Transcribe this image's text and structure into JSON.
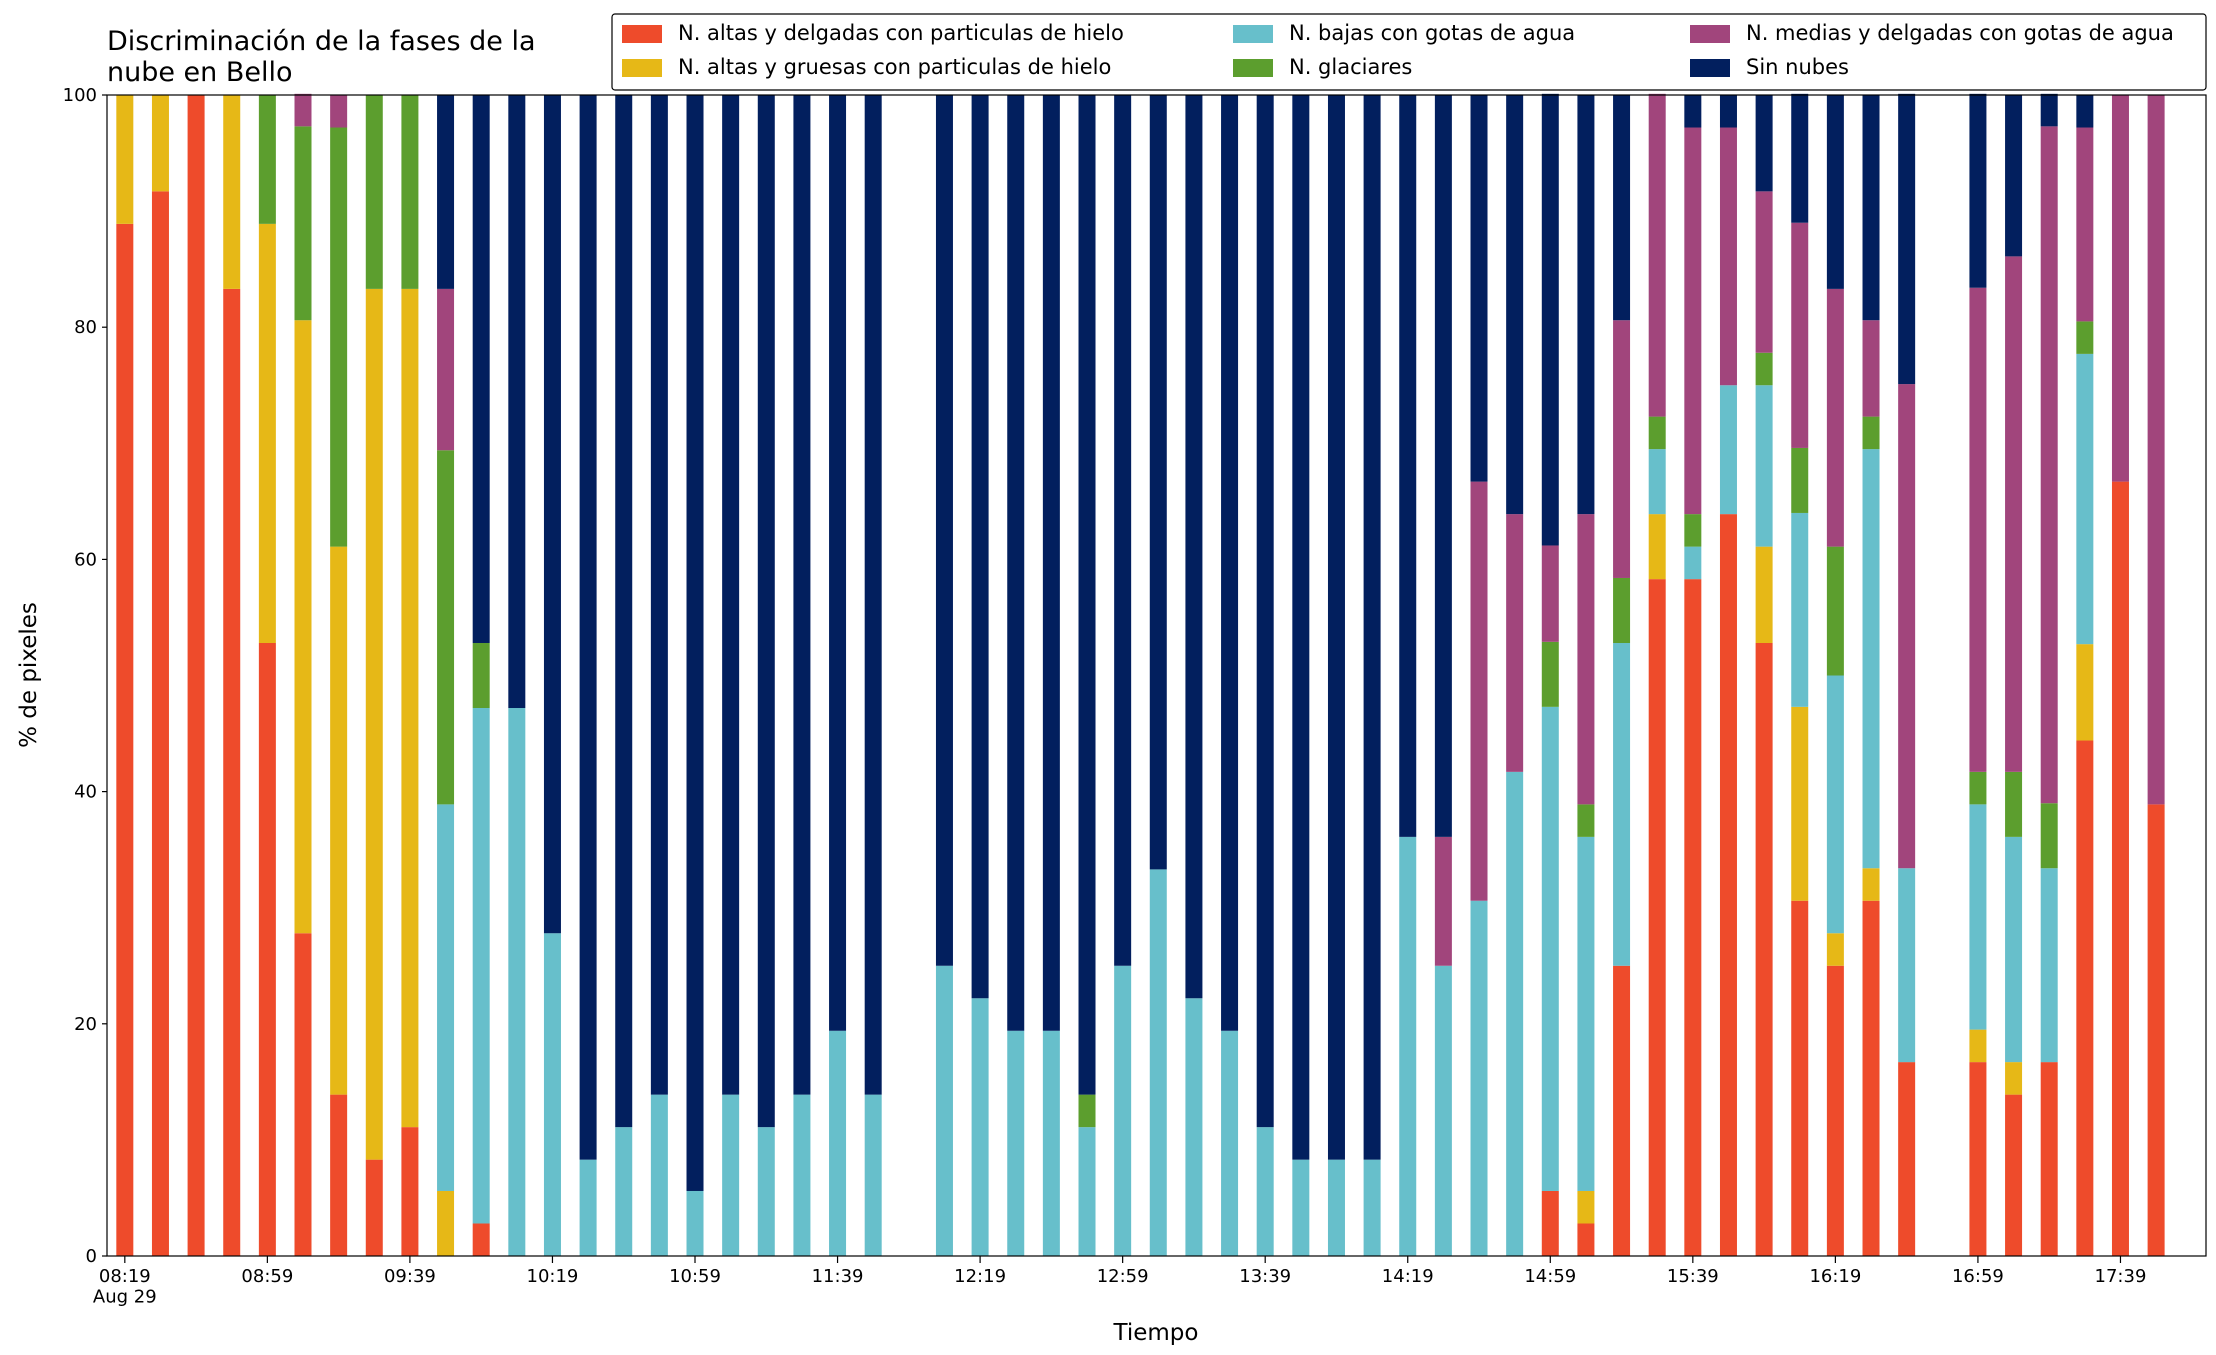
{
  "chart_data": {
    "type": "stacked_bar",
    "title": "Discriminación de la fases de la\nnube en Bello",
    "xlabel": "Tiempo",
    "ylabel": "% de pixeles",
    "x": [
      "08:19",
      "08:29",
      "08:39",
      "08:49",
      "08:59",
      "09:09",
      "09:19",
      "09:29",
      "09:39",
      "09:49",
      "09:59",
      "10:09",
      "10:19",
      "10:29",
      "10:39",
      "10:49",
      "10:59",
      "11:09",
      "11:19",
      "11:29",
      "11:39",
      "11:49",
      "12:09",
      "12:19",
      "12:29",
      "12:39",
      "12:49",
      "12:59",
      "13:09",
      "13:19",
      "13:29",
      "13:39",
      "13:49",
      "13:59",
      "14:09",
      "14:19",
      "14:29",
      "14:39",
      "14:49",
      "14:59",
      "15:09",
      "15:19",
      "15:29",
      "15:39",
      "15:49",
      "15:59",
      "16:09",
      "16:19",
      "16:29",
      "16:39",
      "16:59",
      "17:09",
      "17:19",
      "17:29",
      "17:39",
      "17:49"
    ],
    "xlim": [
      "08:14",
      "18:03"
    ],
    "xticks": [
      {
        "value": "08:19",
        "label": "08:19\nAug 29"
      },
      "08:59",
      "09:39",
      "10:19",
      "10:59",
      "11:39",
      "12:19",
      "12:59",
      "13:39",
      "14:19",
      "14:59",
      "15:39",
      "16:19",
      "16:59",
      "17:39"
    ],
    "ylim": [
      0,
      100
    ],
    "yticks": [
      0,
      20,
      40,
      60,
      80,
      100
    ],
    "legend_position": "upper right",
    "series": [
      {
        "name": "N. altas y delgadas con particulas de hielo",
        "color": "#ee4b2b",
        "values": [
          88.9,
          91.7,
          100,
          83.3,
          52.8,
          27.8,
          13.9,
          8.3,
          11.1,
          0,
          2.8,
          0,
          0,
          0,
          0,
          0,
          0,
          0,
          0,
          0,
          0,
          0,
          0,
          0,
          0,
          0,
          0,
          0,
          0,
          0,
          0,
          0,
          0,
          0,
          0,
          0,
          0,
          0,
          0,
          5.6,
          2.8,
          25.0,
          58.3,
          58.3,
          63.9,
          52.8,
          30.6,
          25.0,
          30.6,
          16.7,
          16.7,
          13.9,
          16.7,
          44.4,
          66.7,
          38.9
        ]
      },
      {
        "name": "N. altas y gruesas con particulas de hielo",
        "color": "#e6b817",
        "values": [
          11.1,
          8.3,
          0,
          16.7,
          36.1,
          52.8,
          47.2,
          75.0,
          72.2,
          5.6,
          0,
          0,
          0,
          0,
          0,
          0,
          0,
          0,
          0,
          0,
          0,
          0,
          0,
          0,
          0,
          0,
          0,
          0,
          0,
          0,
          0,
          0,
          0,
          0,
          0,
          0,
          0,
          0,
          0,
          0,
          2.8,
          0,
          5.6,
          0,
          0,
          8.3,
          16.7,
          2.8,
          2.8,
          0,
          2.8,
          2.8,
          0,
          8.3,
          0,
          0
        ]
      },
      {
        "name": "N. bajas con gotas de agua",
        "color": "#67bfcb",
        "values": [
          0,
          0,
          0,
          0,
          0,
          0,
          0,
          0,
          0,
          33.3,
          44.4,
          47.2,
          27.8,
          8.3,
          11.1,
          13.9,
          5.6,
          13.9,
          11.1,
          13.9,
          19.4,
          13.9,
          25.0,
          22.2,
          19.4,
          19.4,
          11.1,
          25.0,
          33.3,
          22.2,
          19.4,
          11.1,
          8.3,
          8.3,
          8.3,
          36.1,
          25.0,
          30.6,
          41.7,
          41.7,
          30.5,
          27.8,
          5.6,
          2.8,
          11.1,
          13.9,
          16.7,
          22.2,
          36.1,
          16.7,
          19.4,
          19.4,
          16.7,
          25.0,
          0,
          0
        ]
      },
      {
        "name": "N. glaciares",
        "color": "#5c9e2e",
        "values": [
          0,
          0,
          0,
          0,
          11.1,
          16.7,
          36.1,
          16.7,
          16.7,
          30.5,
          5.6,
          0,
          0,
          0,
          0,
          0,
          0,
          0,
          0,
          0,
          0,
          0,
          0,
          0,
          0,
          0,
          2.8,
          0,
          0,
          0,
          0,
          0,
          0,
          0,
          0,
          0,
          0,
          0,
          0,
          5.6,
          2.8,
          5.6,
          2.8,
          2.8,
          0,
          2.8,
          5.6,
          11.1,
          2.8,
          0,
          2.8,
          5.6,
          5.6,
          2.8,
          0,
          0
        ]
      },
      {
        "name": "N. medias y delgadas con gotas de agua",
        "color": "#a1457c",
        "values": [
          0,
          0,
          0,
          0,
          0,
          2.8,
          2.8,
          0,
          0,
          13.9,
          0,
          0,
          0,
          0,
          0,
          0,
          0,
          0,
          0,
          0,
          0,
          0,
          0,
          0,
          0,
          0,
          0,
          0,
          0,
          0,
          0,
          0,
          0,
          0,
          0,
          0,
          11.1,
          36.1,
          22.2,
          8.3,
          25.0,
          22.2,
          27.8,
          33.3,
          22.2,
          13.9,
          19.4,
          22.2,
          8.3,
          41.7,
          41.7,
          44.4,
          58.3,
          16.7,
          33.3,
          61.1
        ]
      },
      {
        "name": "Sin nubes",
        "color": "#021f5e",
        "values": [
          0,
          0,
          0,
          0,
          0,
          0,
          0,
          0,
          0,
          16.7,
          47.2,
          52.8,
          72.2,
          91.7,
          88.9,
          86.1,
          94.4,
          86.1,
          88.9,
          86.1,
          80.6,
          86.1,
          75.0,
          77.8,
          80.6,
          80.6,
          86.1,
          75.0,
          66.7,
          77.8,
          80.6,
          88.9,
          91.7,
          91.7,
          91.7,
          63.9,
          63.9,
          33.3,
          36.1,
          38.9,
          36.1,
          19.4,
          0,
          2.8,
          2.8,
          8.3,
          11.1,
          16.7,
          19.4,
          25.0,
          16.7,
          13.9,
          2.8,
          2.8,
          0,
          0
        ]
      }
    ]
  }
}
